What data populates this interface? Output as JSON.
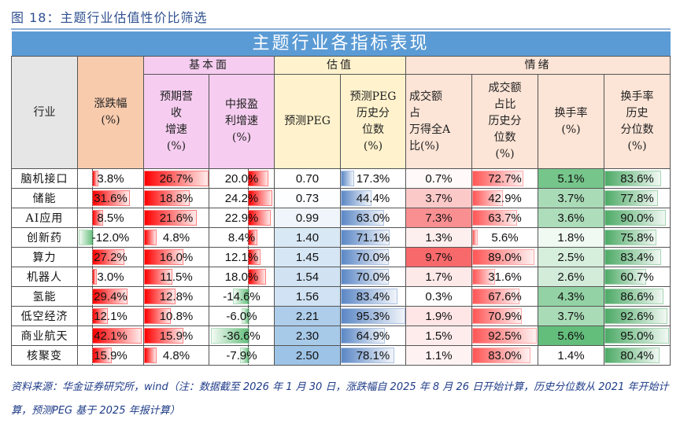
{
  "figure_title": "图 18：主题行业估值性价比筛选",
  "table_title": "主题行业各指标表现",
  "headers": {
    "industry": "行业",
    "change": "涨跌幅\n(%)",
    "group_fundamental": "基本面",
    "group_valuation": "估值",
    "group_sentiment": "情绪",
    "rev_growth": "预期营\n收\n增速\n(%)",
    "profit_growth": "中报盈\n利增速\n(%)",
    "peg": "预测PEG",
    "peg_pct": "预测PEG\n历史分\n位数\n(%)",
    "turnover_share": "成交额\n占\n万得全A\n比(%)",
    "turnover_share_pct": "成交额\n占比\n历史分\n位数\n(%)",
    "turnover_rate": "换手率\n(%)",
    "turnover_rate_pct": "换手率\n历史\n分位数\n(%)"
  },
  "header_colors": {
    "industry": "#e7e6e6",
    "change": "#f8cbad",
    "fundamental": "#f6cdf0",
    "valuation": "#fff2cc",
    "sentiment": "#fce4d6"
  },
  "rows": [
    {
      "industry": "脑机接口",
      "change": "3.8%",
      "rev_growth": "26.7%",
      "profit_growth": "20.0%",
      "peg": "0.70",
      "peg_pct": "17.3%",
      "turnover_share": "0.7%",
      "turnover_share_pct": "72.7%",
      "turnover_rate": "5.1%",
      "turnover_rate_pct": "83.6%"
    },
    {
      "industry": "储能",
      "change": "31.6%",
      "rev_growth": "18.8%",
      "profit_growth": "24.2%",
      "peg": "0.73",
      "peg_pct": "44.4%",
      "turnover_share": "3.7%",
      "turnover_share_pct": "42.9%",
      "turnover_rate": "3.7%",
      "turnover_rate_pct": "77.8%"
    },
    {
      "industry": "AI应用",
      "change": "8.5%",
      "rev_growth": "21.6%",
      "profit_growth": "22.9%",
      "peg": "0.99",
      "peg_pct": "63.0%",
      "turnover_share": "7.3%",
      "turnover_share_pct": "63.7%",
      "turnover_rate": "3.6%",
      "turnover_rate_pct": "90.0%"
    },
    {
      "industry": "创新药",
      "change": "-12.0%",
      "rev_growth": "4.8%",
      "profit_growth": "8.4%",
      "peg": "1.40",
      "peg_pct": "71.1%",
      "turnover_share": "1.3%",
      "turnover_share_pct": "5.6%",
      "turnover_rate": "1.8%",
      "turnover_rate_pct": "75.8%"
    },
    {
      "industry": "算力",
      "change": "27.2%",
      "rev_growth": "16.0%",
      "profit_growth": "12.1%",
      "peg": "1.45",
      "peg_pct": "70.0%",
      "turnover_share": "9.7%",
      "turnover_share_pct": "89.0%",
      "turnover_rate": "2.5%",
      "turnover_rate_pct": "83.4%"
    },
    {
      "industry": "机器人",
      "change": "3.0%",
      "rev_growth": "11.5%",
      "profit_growth": "18.0%",
      "peg": "1.54",
      "peg_pct": "70.0%",
      "turnover_share": "1.7%",
      "turnover_share_pct": "31.6%",
      "turnover_rate": "2.6%",
      "turnover_rate_pct": "60.7%"
    },
    {
      "industry": "氢能",
      "change": "29.4%",
      "rev_growth": "12.8%",
      "profit_growth": "-14.6%",
      "peg": "1.56",
      "peg_pct": "83.4%",
      "turnover_share": "0.3%",
      "turnover_share_pct": "67.6%",
      "turnover_rate": "4.3%",
      "turnover_rate_pct": "86.6%"
    },
    {
      "industry": "低空经济",
      "change": "12.1%",
      "rev_growth": "10.8%",
      "profit_growth": "-6.0%",
      "peg": "2.21",
      "peg_pct": "95.3%",
      "turnover_share": "1.9%",
      "turnover_share_pct": "70.9%",
      "turnover_rate": "3.7%",
      "turnover_rate_pct": "92.6%"
    },
    {
      "industry": "商业航天",
      "change": "42.1%",
      "rev_growth": "15.9%",
      "profit_growth": "-36.6%",
      "peg": "2.30",
      "peg_pct": "64.9%",
      "turnover_share": "1.5%",
      "turnover_share_pct": "92.5%",
      "turnover_rate": "5.6%",
      "turnover_rate_pct": "95.0%"
    },
    {
      "industry": "核聚变",
      "change": "15.9%",
      "rev_growth": "4.8%",
      "profit_growth": "-7.9%",
      "peg": "2.50",
      "peg_pct": "78.1%",
      "turnover_share": "1.1%",
      "turnover_share_pct": "83.0%",
      "turnover_rate": "1.4%",
      "turnover_rate_pct": "80.4%"
    }
  ],
  "colors": {
    "pos_bar": "#ff0000",
    "neg_bar": "#63be7b",
    "peg_bar": "#5b87c5",
    "share_pct_bar": "#ff5555",
    "rate_pct_bar": "#4daa66",
    "peg_scale": "#9dc3e6",
    "share_scale": "#f8696b",
    "rate_scale": "#63be7b"
  },
  "footnote": "资料来源：华金证券研究所，wind（注：数据截至 2026 年 1 月 30 日，涨跌幅自 2025 年 8 月 26 日开始计算，历史分位数从 2021 年开始计算，预测PEG 基于 2025 年报计算）"
}
